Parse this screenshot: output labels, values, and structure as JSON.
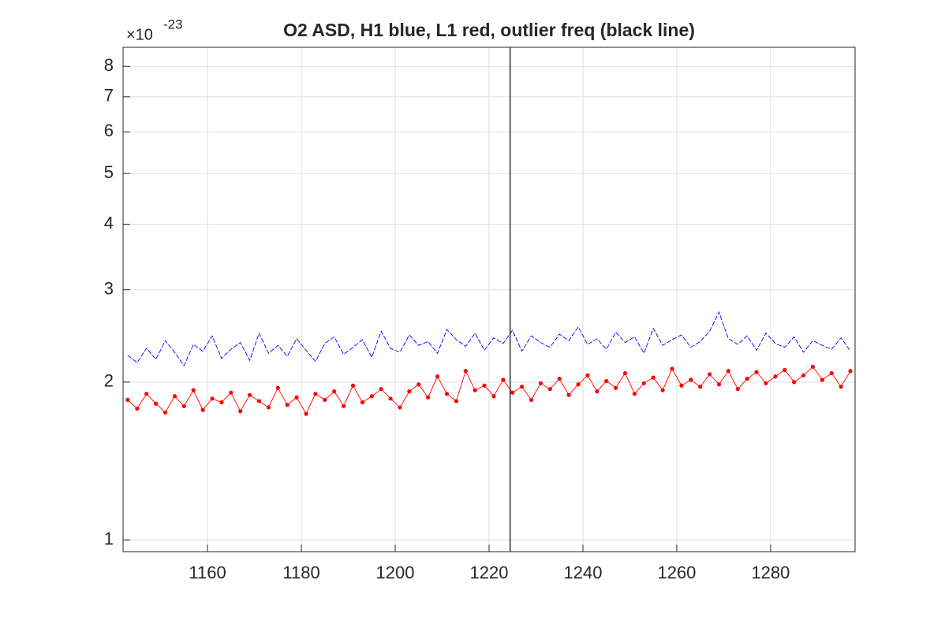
{
  "chart_data": {
    "type": "line",
    "title": "O2 ASD, H1 blue, L1 red, outlier freq (black line)",
    "y_scale_base": "×10",
    "y_scale_exponent": "-23",
    "yscale": "log",
    "grid": true,
    "xlim": [
      1142,
      1298
    ],
    "ylim": [
      0.95,
      8.7
    ],
    "xticks": [
      1160,
      1180,
      1200,
      1220,
      1240,
      1260,
      1280
    ],
    "yticks": [
      1,
      2,
      3,
      4,
      5,
      6,
      7,
      8
    ],
    "outlier_freq": 1224.5,
    "outlier_color": "#000000",
    "x": [
      1143,
      1145,
      1147,
      1149,
      1151,
      1153,
      1155,
      1157,
      1159,
      1161,
      1163,
      1165,
      1167,
      1169,
      1171,
      1173,
      1175,
      1177,
      1179,
      1181,
      1183,
      1185,
      1187,
      1189,
      1191,
      1193,
      1195,
      1197,
      1199,
      1201,
      1203,
      1205,
      1207,
      1209,
      1211,
      1213,
      1215,
      1217,
      1219,
      1221,
      1223,
      1225,
      1227,
      1229,
      1231,
      1233,
      1235,
      1237,
      1239,
      1241,
      1243,
      1245,
      1247,
      1249,
      1251,
      1253,
      1255,
      1257,
      1259,
      1261,
      1263,
      1265,
      1267,
      1269,
      1271,
      1273,
      1275,
      1277,
      1279,
      1281,
      1283,
      1285,
      1287,
      1289,
      1291,
      1293,
      1295,
      1297
    ],
    "series": [
      {
        "name": "H1",
        "color": "#0000ff",
        "markers": false,
        "values": [
          2.25,
          2.18,
          2.32,
          2.21,
          2.4,
          2.28,
          2.15,
          2.36,
          2.29,
          2.45,
          2.22,
          2.31,
          2.38,
          2.2,
          2.48,
          2.27,
          2.35,
          2.24,
          2.42,
          2.3,
          2.19,
          2.37,
          2.44,
          2.26,
          2.33,
          2.41,
          2.23,
          2.5,
          2.32,
          2.28,
          2.46,
          2.35,
          2.39,
          2.27,
          2.52,
          2.41,
          2.34,
          2.48,
          2.3,
          2.43,
          2.37,
          2.51,
          2.29,
          2.45,
          2.38,
          2.33,
          2.47,
          2.4,
          2.55,
          2.36,
          2.42,
          2.31,
          2.49,
          2.38,
          2.44,
          2.27,
          2.53,
          2.35,
          2.41,
          2.46,
          2.33,
          2.39,
          2.5,
          2.72,
          2.42,
          2.36,
          2.45,
          2.3,
          2.48,
          2.37,
          2.33,
          2.44,
          2.28,
          2.4,
          2.35,
          2.31,
          2.43,
          2.29
        ]
      },
      {
        "name": "L1",
        "color": "#ff0000",
        "markers": true,
        "values": [
          1.85,
          1.78,
          1.9,
          1.82,
          1.75,
          1.88,
          1.8,
          1.93,
          1.77,
          1.86,
          1.83,
          1.91,
          1.76,
          1.89,
          1.84,
          1.79,
          1.95,
          1.81,
          1.87,
          1.74,
          1.9,
          1.85,
          1.92,
          1.8,
          1.97,
          1.83,
          1.88,
          1.94,
          1.86,
          1.79,
          1.92,
          1.98,
          1.87,
          2.05,
          1.9,
          1.84,
          2.1,
          1.93,
          1.97,
          1.88,
          2.02,
          1.91,
          1.96,
          1.85,
          1.99,
          1.94,
          2.03,
          1.89,
          1.98,
          2.06,
          1.92,
          2.01,
          1.95,
          2.08,
          1.9,
          1.99,
          2.04,
          1.93,
          2.12,
          1.97,
          2.02,
          1.96,
          2.07,
          1.98,
          2.1,
          1.94,
          2.03,
          2.09,
          1.99,
          2.05,
          2.11,
          2.0,
          2.06,
          2.14,
          2.02,
          2.08,
          1.96,
          2.1
        ]
      }
    ]
  }
}
